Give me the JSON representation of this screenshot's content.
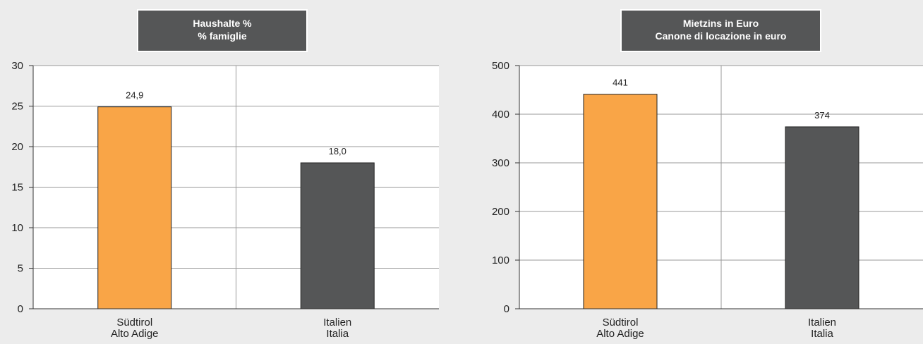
{
  "chart_data": [
    {
      "type": "bar",
      "title": [
        "Haushalte %",
        "% famiglie"
      ],
      "categories": [
        [
          "Südtirol",
          "Alto Adige"
        ],
        [
          "Italien",
          "Italia"
        ]
      ],
      "values": [
        24.9,
        18.0
      ],
      "value_labels": [
        "24,9",
        "18,0"
      ],
      "ylim": [
        0,
        30
      ],
      "yticks": [
        0,
        5,
        10,
        15,
        20,
        25,
        30
      ],
      "grid": true,
      "colors": [
        "#f9a547",
        "#555657"
      ]
    },
    {
      "type": "bar",
      "title": [
        "Mietzins in Euro",
        "Canone di locazione in euro"
      ],
      "categories": [
        [
          "Südtirol",
          "Alto Adige"
        ],
        [
          "Italien",
          "Italia"
        ]
      ],
      "values": [
        441,
        374
      ],
      "value_labels": [
        "441",
        "374"
      ],
      "ylim": [
        0,
        500
      ],
      "yticks": [
        0,
        100,
        200,
        300,
        400,
        500
      ],
      "grid": true,
      "colors": [
        "#f9a547",
        "#555657"
      ]
    }
  ],
  "colors": {
    "background": "#ececec",
    "plot_background": "#ffffff",
    "title_box": "#555657",
    "title_text": "#ffffff",
    "grid": "#999999",
    "bar_outline": "#222222"
  }
}
